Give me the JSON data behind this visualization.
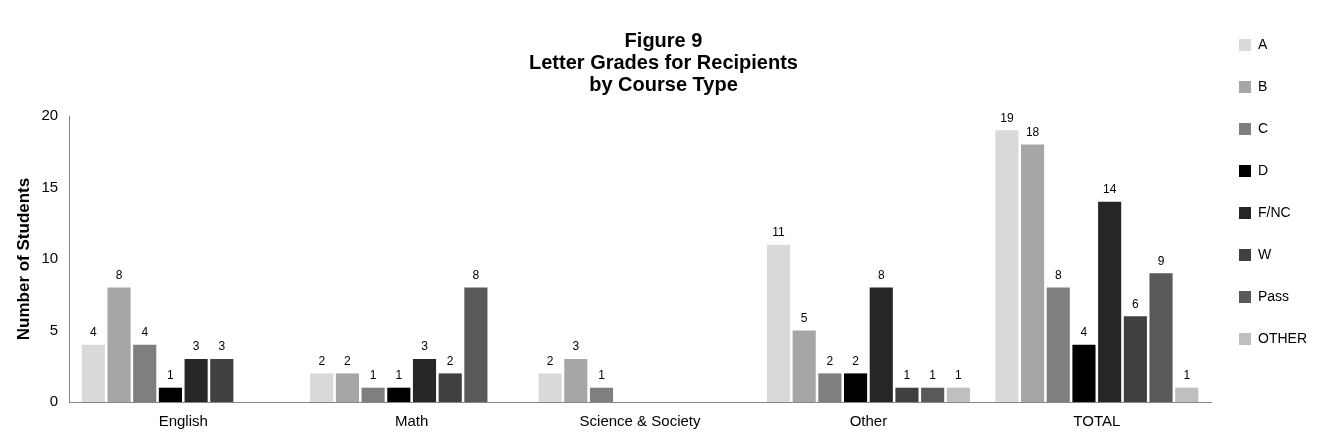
{
  "chart_data": {
    "type": "bar",
    "title": "Figure 9\nLetter Grades for Recipients\nby Course Type",
    "ylabel": "Number of Students",
    "categories": [
      "English",
      "Math",
      "Science & Society",
      "Other",
      "TOTAL"
    ],
    "series": [
      {
        "name": "A",
        "color": "#d9d9d9",
        "values": [
          4,
          2,
          2,
          11,
          19
        ]
      },
      {
        "name": "B",
        "color": "#a6a6a6",
        "values": [
          8,
          2,
          3,
          5,
          18
        ]
      },
      {
        "name": "C",
        "color": "#7f7f7f",
        "values": [
          4,
          1,
          1,
          2,
          8
        ]
      },
      {
        "name": "D",
        "color": "#000000",
        "values": [
          1,
          1,
          null,
          2,
          4
        ]
      },
      {
        "name": "F/NC",
        "color": "#262626",
        "values": [
          3,
          3,
          null,
          8,
          14
        ]
      },
      {
        "name": "W",
        "color": "#404040",
        "values": [
          3,
          2,
          null,
          1,
          6
        ]
      },
      {
        "name": "Pass",
        "color": "#595959",
        "values": [
          null,
          8,
          null,
          1,
          9
        ]
      },
      {
        "name": "OTHER",
        "color": "#bfbfbf",
        "values": [
          null,
          null,
          null,
          1,
          1
        ]
      }
    ],
    "ylim": [
      0,
      20
    ],
    "yticks": [
      0,
      5,
      10,
      15,
      20
    ],
    "grid": false,
    "legend": "right",
    "data_labels": true
  }
}
